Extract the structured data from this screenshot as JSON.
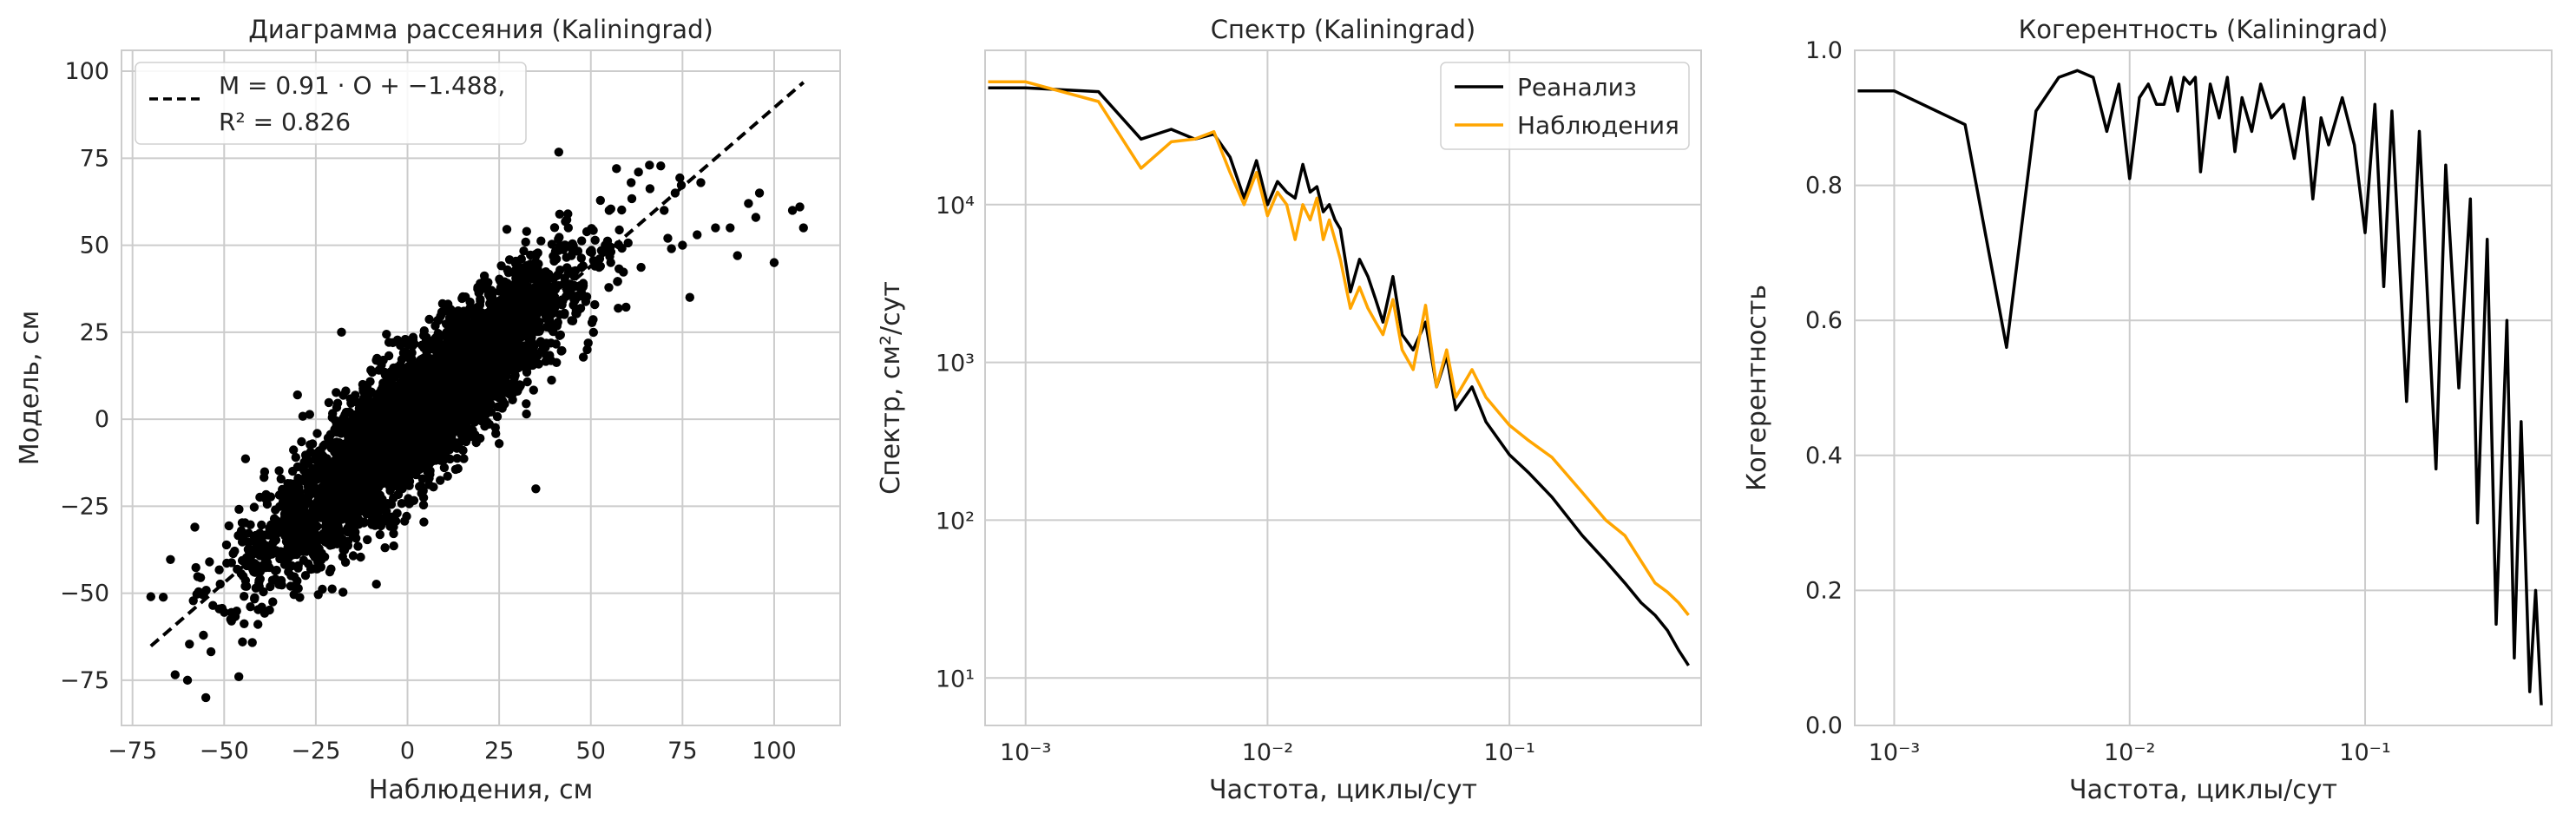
{
  "chart_data": [
    {
      "type": "scatter",
      "title": "Диаграмма рассеяния (Kaliningrad)",
      "xlabel": "Наблюдения, см",
      "ylabel": "Модель, см",
      "xlim": [
        -78,
        118
      ],
      "ylim": [
        -88,
        106
      ],
      "xticks": [
        -75,
        -50,
        -25,
        0,
        25,
        50,
        75,
        100
      ],
      "yticks": [
        -75,
        -50,
        -25,
        0,
        25,
        50,
        75,
        100
      ],
      "grid": true,
      "legend_position": "upper-left",
      "point_cloud": {
        "n": 4500,
        "slope": 0.91,
        "intercept": -1.488,
        "r2": 0.826,
        "x_range": [
          -72,
          108
        ]
      },
      "points": [
        [
          -70,
          -51
        ],
        [
          -60,
          -75
        ],
        [
          -55,
          -80
        ],
        [
          -58,
          -31
        ],
        [
          -48,
          -58
        ],
        [
          -46,
          -74
        ],
        [
          -41,
          -42
        ],
        [
          -38,
          -37
        ],
        [
          -24,
          -10
        ],
        [
          -10,
          -23
        ],
        [
          -4,
          22
        ],
        [
          2,
          -13
        ],
        [
          12,
          -5
        ],
        [
          30,
          21
        ],
        [
          38,
          39
        ],
        [
          49,
          20
        ],
        [
          55,
          60
        ],
        [
          57,
          72
        ],
        [
          61,
          68
        ],
        [
          63,
          71
        ],
        [
          66,
          73
        ],
        [
          70,
          60
        ],
        [
          71,
          52
        ],
        [
          72,
          49
        ],
        [
          73,
          65
        ],
        [
          75,
          50
        ],
        [
          79,
          53
        ],
        [
          80,
          68
        ],
        [
          84,
          55
        ],
        [
          88,
          55
        ],
        [
          90,
          47
        ],
        [
          93,
          62
        ],
        [
          95,
          58
        ],
        [
          96,
          65
        ],
        [
          100,
          45
        ],
        [
          105,
          60
        ],
        [
          107,
          61
        ],
        [
          108,
          55
        ],
        [
          77,
          35
        ],
        [
          35,
          -20
        ],
        [
          -18,
          25
        ],
        [
          -30,
          7
        ],
        [
          25,
          -7
        ],
        [
          -45,
          -64
        ]
      ],
      "series": [
        {
          "name": "$M = 0.91\\cdot O + -1.488$,",
          "type": "line",
          "x": [
            -70,
            108
          ],
          "y": [
            -65.19,
            96.79
          ],
          "color": "#000000",
          "linestyle": "dashed"
        }
      ],
      "legend_entries": [
        "M = 0.91 · O + −1.488,",
        "R² = 0.826"
      ]
    },
    {
      "type": "line",
      "title": "Спектр (Kaliningrad)",
      "xlabel": "Частота, циклы/сут",
      "ylabel": "Спектр, см²/сут",
      "xscale": "log",
      "yscale": "log",
      "xlim": [
        0.00068,
        0.62
      ],
      "ylim": [
        5,
        95000
      ],
      "xticks": [
        "10⁻³",
        "10⁻²",
        "10⁻¹"
      ],
      "yticks": [
        "10¹",
        "10²",
        "10³",
        "10⁴"
      ],
      "grid": true,
      "legend_position": "upper-right",
      "series": [
        {
          "name": "Реанализ",
          "color": "#000000",
          "x": [
            0.0007,
            0.001,
            0.002,
            0.003,
            0.004,
            0.005,
            0.006,
            0.007,
            0.008,
            0.009,
            0.01,
            0.011,
            0.012,
            0.013,
            0.014,
            0.015,
            0.016,
            0.017,
            0.018,
            0.019,
            0.02,
            0.022,
            0.024,
            0.026,
            0.028,
            0.03,
            0.033,
            0.036,
            0.04,
            0.045,
            0.05,
            0.055,
            0.06,
            0.07,
            0.08,
            0.1,
            0.12,
            0.15,
            0.2,
            0.25,
            0.3,
            0.35,
            0.4,
            0.45,
            0.5,
            0.55
          ],
          "y": [
            55000,
            55000,
            52000,
            26000,
            30000,
            26000,
            28000,
            20000,
            11000,
            19000,
            10000,
            14000,
            12000,
            11000,
            18000,
            12000,
            13000,
            9000,
            10000,
            8000,
            7000,
            2800,
            4500,
            3500,
            2500,
            1800,
            3500,
            1500,
            1200,
            1800,
            700,
            1100,
            500,
            700,
            420,
            260,
            200,
            140,
            80,
            55,
            40,
            30,
            25,
            20,
            15,
            12
          ]
        },
        {
          "name": "Наблюдения",
          "color": "#ffa500",
          "x": [
            0.0007,
            0.001,
            0.002,
            0.003,
            0.004,
            0.005,
            0.006,
            0.007,
            0.008,
            0.009,
            0.01,
            0.011,
            0.012,
            0.013,
            0.014,
            0.015,
            0.016,
            0.017,
            0.018,
            0.019,
            0.02,
            0.022,
            0.024,
            0.026,
            0.028,
            0.03,
            0.033,
            0.036,
            0.04,
            0.045,
            0.05,
            0.055,
            0.06,
            0.07,
            0.08,
            0.1,
            0.12,
            0.15,
            0.2,
            0.25,
            0.3,
            0.35,
            0.4,
            0.45,
            0.5,
            0.55
          ],
          "y": [
            60000,
            60000,
            45000,
            17000,
            25000,
            26000,
            29000,
            16000,
            10000,
            16000,
            8500,
            12000,
            10000,
            6000,
            10000,
            8000,
            11000,
            6000,
            8000,
            6000,
            4500,
            2200,
            3000,
            2200,
            1800,
            1500,
            2500,
            1200,
            900,
            2300,
            700,
            1200,
            600,
            900,
            600,
            400,
            320,
            250,
            150,
            100,
            80,
            55,
            40,
            35,
            30,
            25
          ]
        }
      ]
    },
    {
      "type": "line",
      "title": "Когерентность (Kaliningrad)",
      "xlabel": "Частота, циклы/сут",
      "ylabel": "Когерентность",
      "xscale": "log",
      "xlim": [
        0.00068,
        0.62
      ],
      "ylim": [
        0,
        1.0
      ],
      "xticks": [
        "10⁻³",
        "10⁻²",
        "10⁻¹"
      ],
      "yticks": [
        0.0,
        0.2,
        0.4,
        0.6,
        0.8,
        1.0
      ],
      "grid": true,
      "series": [
        {
          "name": "",
          "color": "#000000",
          "x": [
            0.0007,
            0.001,
            0.002,
            0.003,
            0.004,
            0.005,
            0.006,
            0.007,
            0.008,
            0.009,
            0.01,
            0.011,
            0.012,
            0.013,
            0.014,
            0.015,
            0.016,
            0.017,
            0.018,
            0.019,
            0.02,
            0.022,
            0.024,
            0.026,
            0.028,
            0.03,
            0.033,
            0.036,
            0.04,
            0.045,
            0.05,
            0.055,
            0.06,
            0.065,
            0.07,
            0.08,
            0.09,
            0.1,
            0.11,
            0.12,
            0.13,
            0.15,
            0.17,
            0.2,
            0.22,
            0.25,
            0.28,
            0.3,
            0.33,
            0.36,
            0.4,
            0.43,
            0.46,
            0.5,
            0.53,
            0.56
          ],
          "y": [
            0.94,
            0.94,
            0.89,
            0.56,
            0.91,
            0.96,
            0.97,
            0.96,
            0.88,
            0.95,
            0.81,
            0.93,
            0.95,
            0.92,
            0.92,
            0.96,
            0.91,
            0.96,
            0.95,
            0.96,
            0.82,
            0.95,
            0.9,
            0.96,
            0.85,
            0.93,
            0.88,
            0.95,
            0.9,
            0.92,
            0.84,
            0.93,
            0.78,
            0.9,
            0.86,
            0.93,
            0.86,
            0.73,
            0.92,
            0.65,
            0.91,
            0.48,
            0.88,
            0.38,
            0.83,
            0.5,
            0.78,
            0.3,
            0.72,
            0.15,
            0.6,
            0.1,
            0.45,
            0.05,
            0.2,
            0.03
          ]
        }
      ]
    }
  ]
}
